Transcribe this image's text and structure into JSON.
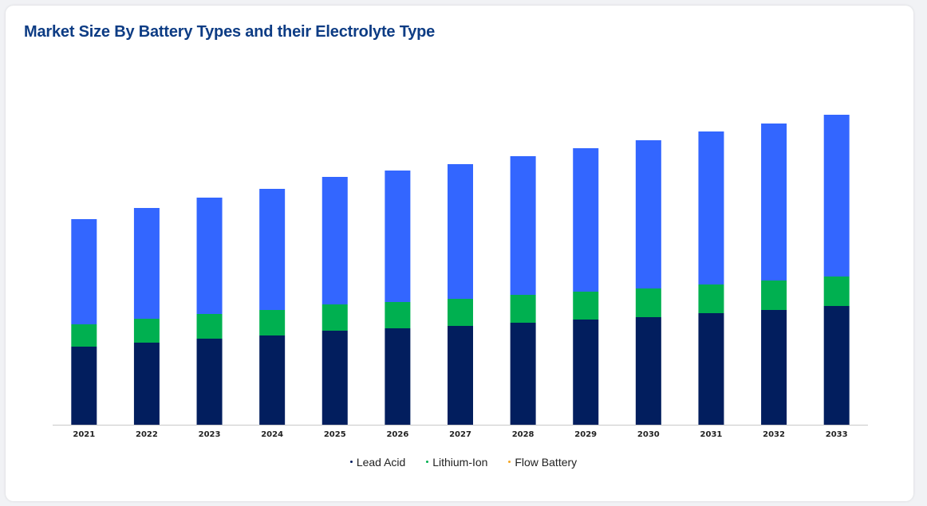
{
  "chart_data": {
    "type": "bar",
    "stacked": true,
    "title": "Market Size By Battery Types and their Electrolyte Type",
    "categories": [
      "2021",
      "2022",
      "2023",
      "2024",
      "2025",
      "2026",
      "2027",
      "2028",
      "2029",
      "2030",
      "2031",
      "2032",
      "2033"
    ],
    "series": [
      {
        "name": "Lead Acid",
        "color": "#021e5e",
        "values": [
          98,
          103,
          108,
          112,
          118,
          121,
          124,
          128,
          132,
          135,
          140,
          144,
          149
        ]
      },
      {
        "name": "Lithium-Ion",
        "color": "#00b050",
        "values": [
          28,
          30,
          31,
          32,
          33,
          33,
          34,
          35,
          35,
          36,
          36,
          37,
          37
        ]
      },
      {
        "name": "Flow Battery",
        "color": "#3366ff",
        "values": [
          132,
          139,
          146,
          152,
          160,
          165,
          169,
          174,
          180,
          186,
          192,
          197,
          203
        ]
      }
    ],
    "legend_position": "bottom",
    "grid": false,
    "y_axis_visible": false,
    "ylim": [
      0,
      400
    ]
  },
  "legend": {
    "dot_colors": [
      "#021e5e",
      "#00b050",
      "#f5a623"
    ]
  }
}
